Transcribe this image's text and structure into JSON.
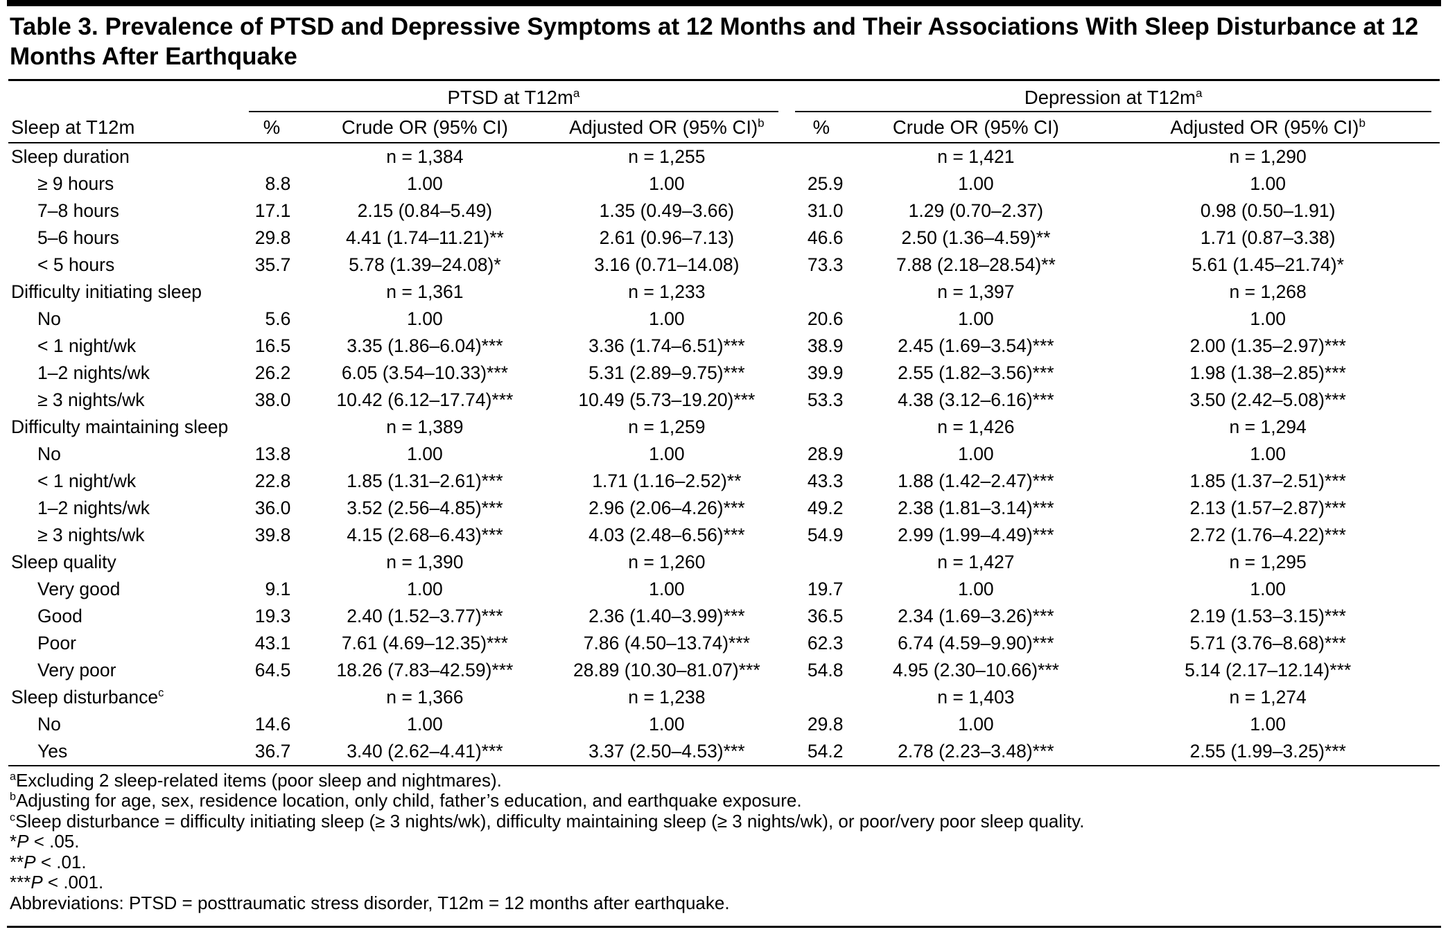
{
  "title": "Table 3. Prevalence of PTSD and Depressive Symptoms at 12 Months and Their Associations With Sleep Disturbance at 12 Months After Earthquake",
  "header": {
    "row_label": "Sleep at T12m",
    "groups": [
      {
        "label": "PTSD at T12m",
        "sup": "a"
      },
      {
        "label": "Depression at T12m",
        "sup": "a"
      }
    ],
    "subcolumns": [
      {
        "label": "%",
        "sup": ""
      },
      {
        "label": "Crude OR (95% CI)",
        "sup": ""
      },
      {
        "label": "Adjusted OR (95% CI)",
        "sup": "b"
      }
    ]
  },
  "rows": [
    {
      "type": "section",
      "label": "Sleep duration",
      "sup": "",
      "cells": [
        "",
        "n = 1,384",
        "n = 1,255",
        "",
        "n = 1,421",
        "n = 1,290"
      ]
    },
    {
      "type": "data",
      "label": "≥ 9 hours",
      "sup": "",
      "cells": [
        "8.8",
        "1.00",
        "1.00",
        "25.9",
        "1.00",
        "1.00"
      ]
    },
    {
      "type": "data",
      "label": "7–8 hours",
      "sup": "",
      "cells": [
        "17.1",
        "2.15 (0.84–5.49)",
        "1.35 (0.49–3.66)",
        "31.0",
        "1.29 (0.70–2.37)",
        "0.98 (0.50–1.91)"
      ]
    },
    {
      "type": "data",
      "label": "5–6 hours",
      "sup": "",
      "cells": [
        "29.8",
        "4.41 (1.74–11.21)**",
        "2.61 (0.96–7.13)",
        "46.6",
        "2.50 (1.36–4.59)**",
        "1.71 (0.87–3.38)"
      ]
    },
    {
      "type": "data",
      "label": "< 5 hours",
      "sup": "",
      "cells": [
        "35.7",
        "5.78 (1.39–24.08)*",
        "3.16 (0.71–14.08)",
        "73.3",
        "7.88 (2.18–28.54)**",
        "5.61 (1.45–21.74)*"
      ]
    },
    {
      "type": "section",
      "label": "Difficulty initiating sleep",
      "sup": "",
      "cells": [
        "",
        "n = 1,361",
        "n = 1,233",
        "",
        "n = 1,397",
        "n = 1,268"
      ]
    },
    {
      "type": "data",
      "label": "No",
      "sup": "",
      "cells": [
        "5.6",
        "1.00",
        "1.00",
        "20.6",
        "1.00",
        "1.00"
      ]
    },
    {
      "type": "data",
      "label": "< 1 night/wk",
      "sup": "",
      "cells": [
        "16.5",
        "3.35 (1.86–6.04)***",
        "3.36 (1.74–6.51)***",
        "38.9",
        "2.45 (1.69–3.54)***",
        "2.00 (1.35–2.97)***"
      ]
    },
    {
      "type": "data",
      "label": "1–2 nights/wk",
      "sup": "",
      "cells": [
        "26.2",
        "6.05 (3.54–10.33)***",
        "5.31 (2.89–9.75)***",
        "39.9",
        "2.55 (1.82–3.56)***",
        "1.98 (1.38–2.85)***"
      ]
    },
    {
      "type": "data",
      "label": "≥ 3 nights/wk",
      "sup": "",
      "cells": [
        "38.0",
        "10.42 (6.12–17.74)***",
        "10.49 (5.73–19.20)***",
        "53.3",
        "4.38 (3.12–6.16)***",
        "3.50 (2.42–5.08)***"
      ]
    },
    {
      "type": "section",
      "label": "Difficulty maintaining sleep",
      "sup": "",
      "cells": [
        "",
        "n = 1,389",
        "n = 1,259",
        "",
        "n = 1,426",
        "n = 1,294"
      ]
    },
    {
      "type": "data",
      "label": "No",
      "sup": "",
      "cells": [
        "13.8",
        "1.00",
        "1.00",
        "28.9",
        "1.00",
        "1.00"
      ]
    },
    {
      "type": "data",
      "label": "< 1 night/wk",
      "sup": "",
      "cells": [
        "22.8",
        "1.85 (1.31–2.61)***",
        "1.71 (1.16–2.52)**",
        "43.3",
        "1.88 (1.42–2.47)***",
        "1.85 (1.37–2.51)***"
      ]
    },
    {
      "type": "data",
      "label": "1–2 nights/wk",
      "sup": "",
      "cells": [
        "36.0",
        "3.52 (2.56–4.85)***",
        "2.96 (2.06–4.26)***",
        "49.2",
        "2.38 (1.81–3.14)***",
        "2.13 (1.57–2.87)***"
      ]
    },
    {
      "type": "data",
      "label": "≥ 3 nights/wk",
      "sup": "",
      "cells": [
        "39.8",
        "4.15 (2.68–6.43)***",
        "4.03 (2.48–6.56)***",
        "54.9",
        "2.99 (1.99–4.49)***",
        "2.72 (1.76–4.22)***"
      ]
    },
    {
      "type": "section",
      "label": "Sleep quality",
      "sup": "",
      "cells": [
        "",
        "n = 1,390",
        "n = 1,260",
        "",
        "n = 1,427",
        "n = 1,295"
      ]
    },
    {
      "type": "data",
      "label": "Very good",
      "sup": "",
      "cells": [
        "9.1",
        "1.00",
        "1.00",
        "19.7",
        "1.00",
        "1.00"
      ]
    },
    {
      "type": "data",
      "label": "Good",
      "sup": "",
      "cells": [
        "19.3",
        "2.40 (1.52–3.77)***",
        "2.36 (1.40–3.99)***",
        "36.5",
        "2.34 (1.69–3.26)***",
        "2.19 (1.53–3.15)***"
      ]
    },
    {
      "type": "data",
      "label": "Poor",
      "sup": "",
      "cells": [
        "43.1",
        "7.61 (4.69–12.35)***",
        "7.86 (4.50–13.74)***",
        "62.3",
        "6.74 (4.59–9.90)***",
        "5.71 (3.76–8.68)***"
      ]
    },
    {
      "type": "data",
      "label": "Very poor",
      "sup": "",
      "cells": [
        "64.5",
        "18.26 (7.83–42.59)***",
        "28.89 (10.30–81.07)***",
        "54.8",
        "4.95 (2.30–10.66)***",
        "5.14 (2.17–12.14)***"
      ]
    },
    {
      "type": "section",
      "label": "Sleep disturbance",
      "sup": "c",
      "cells": [
        "",
        "n = 1,366",
        "n = 1,238",
        "",
        "n = 1,403",
        "n = 1,274"
      ]
    },
    {
      "type": "data",
      "label": "No",
      "sup": "",
      "cells": [
        "14.6",
        "1.00",
        "1.00",
        "29.8",
        "1.00",
        "1.00"
      ]
    },
    {
      "type": "data",
      "label": "Yes",
      "sup": "",
      "cells": [
        "36.7",
        "3.40 (2.62–4.41)***",
        "3.37 (2.50–4.53)***",
        "54.2",
        "2.78 (2.23–3.48)***",
        "2.55 (1.99–3.25)***"
      ]
    }
  ],
  "footnotes": [
    {
      "sup": "a",
      "text": "Excluding 2 sleep-related items (poor sleep and nightmares)."
    },
    {
      "sup": "b",
      "text": "Adjusting for age, sex, residence location, only child, father’s education, and earthquake exposure."
    },
    {
      "sup": "c",
      "text": "Sleep disturbance = difficulty initiating sleep (≥ 3 nights/wk), difficulty maintaining sleep (≥ 3 nights/wk), or poor/very poor sleep quality."
    }
  ],
  "pnotes": [
    {
      "stars": "*",
      "symbol": "P",
      "rest": " < .05."
    },
    {
      "stars": "**",
      "symbol": "P",
      "rest": " < .01."
    },
    {
      "stars": "***",
      "symbol": "P",
      "rest": " < .001."
    }
  ],
  "abbreviations": "Abbreviations: PTSD = posttraumatic stress disorder, T12m = 12 months after earthquake."
}
